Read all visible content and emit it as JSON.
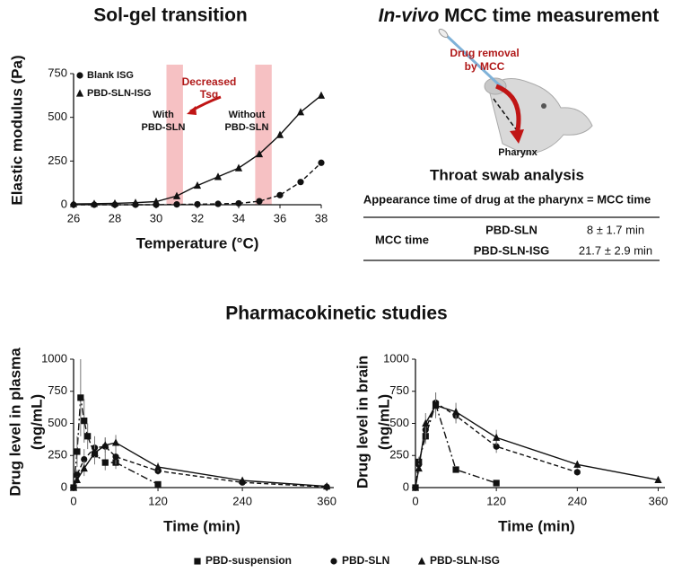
{
  "chart_data": [
    {
      "type": "line",
      "title": "Sol-gel transition",
      "x_label": "Temperature (°C)",
      "y_label": "Elastic modulus (Pa)",
      "x": [
        26,
        27,
        28,
        29,
        30,
        31,
        32,
        33,
        34,
        35,
        36,
        37,
        38
      ],
      "series": [
        {
          "name": "Blank ISG",
          "color": "#111111",
          "marker": "circle",
          "line_style": "dashed",
          "values": [
            0,
            0,
            0,
            0,
            0,
            2,
            3,
            5,
            8,
            20,
            55,
            130,
            240
          ]
        },
        {
          "name": "PBD-SLN-ISG",
          "color": "#111111",
          "marker": "triangle",
          "line_style": "solid",
          "values": [
            5,
            6,
            8,
            12,
            18,
            50,
            110,
            160,
            210,
            290,
            400,
            530,
            625
          ]
        }
      ],
      "xlim": [
        26,
        38
      ],
      "xticks": [
        26,
        28,
        30,
        32,
        34,
        36,
        38
      ],
      "ylim": [
        0,
        750
      ],
      "yticks": [
        0,
        250,
        500,
        750
      ],
      "legend": "top-left",
      "bands": [
        [
          30.5,
          31.3
        ],
        [
          34.8,
          35.6
        ]
      ],
      "band_color": "#f4b6b8",
      "annotations": {
        "decreased": [
          "Decreased",
          "Tsg"
        ],
        "with": [
          "With",
          "PBD-SLN"
        ],
        "without": [
          "Without",
          "PBD-SLN"
        ]
      }
    },
    {
      "type": "line",
      "y_label": [
        "Drug level in plasma",
        "(ng/mL)"
      ],
      "x_label": "Time (min)",
      "series": [
        {
          "name": "PBD-suspension",
          "color": "#111111",
          "marker": "square",
          "line_style": "dashdot",
          "x": [
            0,
            5,
            10,
            15,
            20,
            30,
            45,
            60,
            120
          ],
          "values": [
            0,
            280,
            700,
            520,
            400,
            260,
            195,
            195,
            25
          ],
          "errors": [
            0,
            120,
            300,
            170,
            100,
            80,
            60,
            50,
            10
          ]
        },
        {
          "name": "PBD-SLN",
          "color": "#111111",
          "marker": "circle",
          "line_style": "dashed",
          "x": [
            0,
            5,
            15,
            30,
            45,
            60,
            120,
            240,
            360
          ],
          "values": [
            0,
            100,
            220,
            310,
            320,
            240,
            130,
            40,
            5
          ],
          "errors": [
            0,
            40,
            80,
            90,
            70,
            60,
            30,
            15,
            5
          ]
        },
        {
          "name": "PBD-SLN-ISG",
          "color": "#111111",
          "marker": "triangle",
          "line_style": "solid",
          "x": [
            0,
            5,
            15,
            30,
            45,
            60,
            120,
            240,
            360
          ],
          "values": [
            0,
            60,
            150,
            270,
            330,
            350,
            160,
            55,
            10
          ],
          "errors": [
            0,
            30,
            60,
            80,
            60,
            60,
            35,
            20,
            5
          ]
        }
      ],
      "xlim": [
        0,
        370
      ],
      "xticks": [
        0,
        120,
        240,
        360
      ],
      "ylim": [
        0,
        1000
      ],
      "yticks": [
        0,
        250,
        500,
        750,
        1000
      ]
    },
    {
      "type": "line",
      "y_label": [
        "Drug level in brain",
        "(ng/mL)"
      ],
      "x_label": "Time (min)",
      "series": [
        {
          "color": "#111111",
          "marker": "square",
          "line_style": "dashdot",
          "x": [
            0,
            5,
            15,
            30,
            60,
            120
          ],
          "values": [
            0,
            200,
            400,
            650,
            140,
            35
          ],
          "errors": [
            0,
            40,
            60,
            90,
            20,
            8
          ]
        },
        {
          "color": "#111111",
          "marker": "circle",
          "line_style": "dashed",
          "x": [
            0,
            5,
            15,
            30,
            60,
            120,
            240
          ],
          "values": [
            0,
            180,
            450,
            660,
            560,
            320,
            120
          ],
          "errors": [
            0,
            40,
            70,
            80,
            60,
            50,
            25
          ]
        },
        {
          "color": "#111111",
          "marker": "triangle",
          "line_style": "solid",
          "x": [
            0,
            5,
            15,
            30,
            60,
            120,
            240,
            360
          ],
          "values": [
            0,
            150,
            500,
            640,
            590,
            390,
            180,
            60
          ],
          "errors": [
            0,
            40,
            80,
            100,
            70,
            60,
            30,
            10
          ]
        }
      ],
      "xlim": [
        0,
        370
      ],
      "xticks": [
        0,
        120,
        240,
        360
      ],
      "ylim": [
        0,
        1000
      ],
      "yticks": [
        0,
        250,
        500,
        750,
        1000
      ]
    }
  ],
  "pk_title": "Pharmacokinetic studies",
  "mcc": {
    "title": {
      "italic": "In-vivo",
      "rest": " MCC time measurement"
    },
    "drug_removal": [
      "Drug removal",
      "by MCC"
    ],
    "pharynx": "Pharynx",
    "analysis_title": "Throat swab analysis",
    "definition": "Appearance time of drug at the pharynx = MCC time",
    "table": {
      "row_header": "MCC time",
      "rows": [
        [
          "PBD-SLN",
          "8 ± 1.7 min"
        ],
        [
          "PBD-SLN-ISG",
          "21.7 ± 2.9 min"
        ]
      ]
    }
  }
}
